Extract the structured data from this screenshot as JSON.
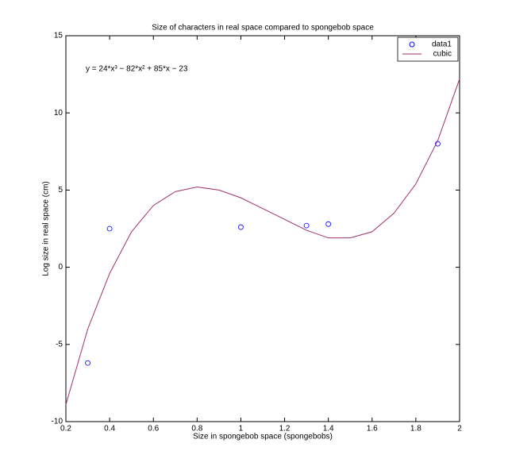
{
  "chart_data": {
    "type": "scatter",
    "title": "Size of characters in real space compared to spongebob space",
    "x_label": "Size in spongebob space (spongebobs)",
    "y_label": "Log size in real space (cm)",
    "annotation": "y = 24*x³ − 82*x² + 85*x − 23",
    "xlim": [
      0.2,
      2
    ],
    "ylim": [
      -10,
      15
    ],
    "xticks": [
      0.2,
      0.4,
      0.6,
      0.8,
      1,
      1.2,
      1.4,
      1.6,
      1.8,
      2
    ],
    "yticks": [
      -10,
      -5,
      0,
      5,
      10,
      15
    ],
    "legend": "upper right",
    "series": [
      {
        "name": "data1",
        "type": "scatter",
        "color": "#0000ff",
        "x": [
          0.3,
          0.4,
          1.0,
          1.3,
          1.4,
          1.9
        ],
        "values": [
          -6.2,
          2.5,
          2.6,
          2.7,
          2.8,
          8.0
        ]
      },
      {
        "name": "cubic",
        "type": "line",
        "color": "#a0306f",
        "x": [
          0.2,
          0.3,
          0.4,
          0.5,
          0.6,
          0.7,
          0.8,
          0.9,
          1.0,
          1.1,
          1.2,
          1.3,
          1.4,
          1.5,
          1.6,
          1.7,
          1.8,
          1.9,
          2.0
        ],
        "values": [
          -8.9,
          -4.0,
          -0.4,
          2.3,
          4.0,
          4.9,
          5.2,
          5.0,
          4.5,
          3.8,
          3.1,
          2.4,
          1.9,
          1.9,
          2.3,
          3.5,
          5.4,
          8.2,
          12.2
        ]
      }
    ]
  }
}
